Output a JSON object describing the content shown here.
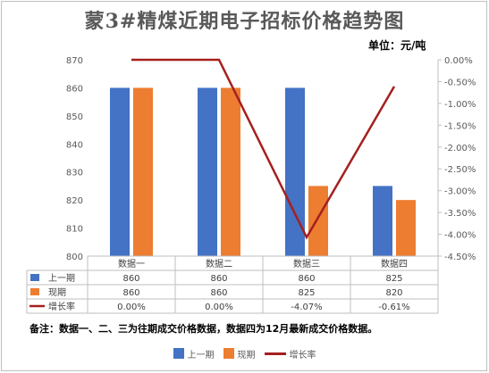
{
  "title": "蒙3#精煤近期电子招标价格趋势图",
  "unit_label": "单位：元/吨",
  "note": "备注：数据一、二、三为往期成交价格数据，数据四为12月最新成交价格数据。",
  "colors": {
    "prev": "#4472C4",
    "curr": "#ED7D31",
    "growth": "#A5201F"
  },
  "chart_data": {
    "type": "bar",
    "categories": [
      "数据一",
      "数据二",
      "数据三",
      "数据四"
    ],
    "series": [
      {
        "name": "上一期",
        "kind": "bar",
        "axis": "left",
        "values": [
          860,
          860,
          860,
          825
        ]
      },
      {
        "name": "现期",
        "kind": "bar",
        "axis": "left",
        "values": [
          860,
          860,
          825,
          820
        ]
      },
      {
        "name": "增长率",
        "kind": "line",
        "axis": "right",
        "values": [
          0.0,
          0.0,
          -4.07,
          -0.61
        ]
      }
    ],
    "table_values": [
      [
        "860",
        "860",
        "860",
        "825"
      ],
      [
        "860",
        "860",
        "825",
        "820"
      ],
      [
        "0.00%",
        "0.00%",
        "-4.07%",
        "-0.61%"
      ]
    ],
    "ylim_left": [
      800,
      870
    ],
    "yticks_left": [
      800,
      810,
      820,
      830,
      840,
      850,
      860,
      870
    ],
    "ylim_right": [
      -4.5,
      0
    ],
    "yticks_right": [
      "0.00%",
      "-0.50%",
      "-1.00%",
      "-1.50%",
      "-2.00%",
      "-2.50%",
      "-3.00%",
      "-3.50%",
      "-4.00%",
      "-4.50%"
    ],
    "legend_position": "bottom",
    "grid": false
  }
}
